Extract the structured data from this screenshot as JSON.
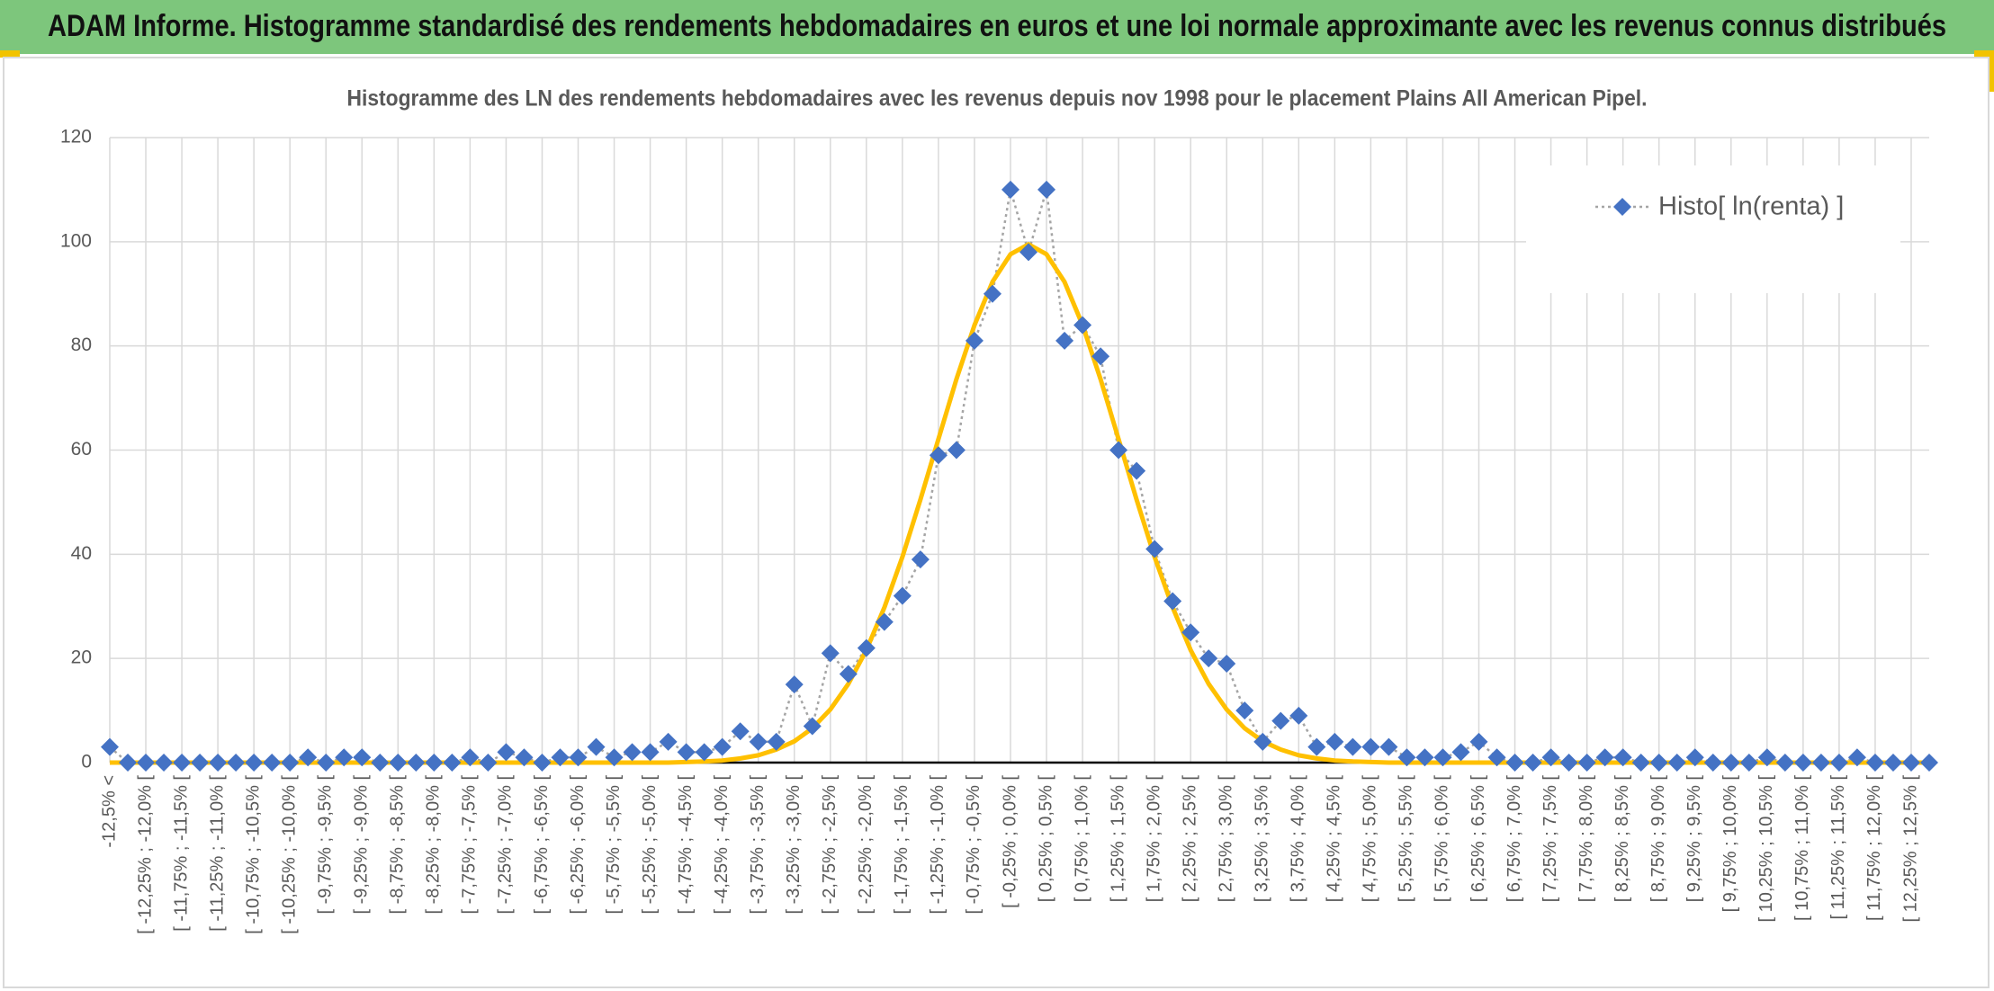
{
  "header": {
    "title": "ADAM Informe. Histogramme standardisé des rendements hebdomadaires en euros et une loi normale approximante avec les revenus connus distribués"
  },
  "chart_data": {
    "type": "line",
    "title": "Histogramme des LN des rendements hebdomadaires avec les revenus depuis nov 1998 pour le placement Plains All American Pipel.",
    "categories": [
      "-12,5% <",
      null,
      "[ -12,25% ; -12,0% [",
      null,
      "[ -11,75% ; -11,5% [",
      null,
      "[ -11,25% ; -11,0% [",
      null,
      "[ -10,75% ; -10,5% [",
      null,
      "[ -10,25% ; -10,0% [",
      null,
      "[ -9,75% ; -9,5% [",
      null,
      "[ -9,25% ; -9,0% [",
      null,
      "[ -8,75% ; -8,5% [",
      null,
      "[ -8,25% ; -8,0% [",
      null,
      "[ -7,75% ; -7,5% [",
      null,
      "[ -7,25% ; -7,0% [",
      null,
      "[ -6,75% ; -6,5% [",
      null,
      "[ -6,25% ; -6,0% [",
      null,
      "[ -5,75% ; -5,5% [",
      null,
      "[ -5,25% ; -5,0% [",
      null,
      "[ -4,75% ; -4,5% [",
      null,
      "[ -4,25% ; -4,0% [",
      null,
      "[ -3,75% ; -3,5% [",
      null,
      "[ -3,25% ; -3,0% [",
      null,
      "[ -2,75% ; -2,5% [",
      null,
      "[ -2,25% ; -2,0% [",
      null,
      "[ -1,75% ; -1,5% [",
      null,
      "[ -1,25% ; -1,0% [",
      null,
      "[ -0,75% ; -0,5% [",
      null,
      "[ -0,25% ; 0,0% [",
      null,
      "[ 0,25% ; 0,5% [",
      null,
      "[ 0,75% ; 1,0% [",
      null,
      "[ 1,25% ; 1,5% [",
      null,
      "[ 1,75% ; 2,0% [",
      null,
      "[ 2,25% ; 2,5% [",
      null,
      "[ 2,75% ; 3,0% [",
      null,
      "[ 3,25% ; 3,5% [",
      null,
      "[ 3,75% ; 4,0% [",
      null,
      "[ 4,25% ; 4,5% [",
      null,
      "[ 4,75% ; 5,0% [",
      null,
      "[ 5,25% ; 5,5% [",
      null,
      "[ 5,75% ; 6,0% [",
      null,
      "[ 6,25% ; 6,5% [",
      null,
      "[ 6,75% ; 7,0% [",
      null,
      "[ 7,25% ; 7,5% [",
      null,
      "[ 7,75% ; 8,0% [",
      null,
      "[ 8,25% ; 8,5% [",
      null,
      "[ 8,75% ; 9,0% [",
      null,
      "[ 9,25% ; 9,5% [",
      null,
      "[ 9,75% ; 10,0% [",
      null,
      "[ 10,25% ; 10,5% [",
      null,
      "[ 10,75% ; 11,0% [",
      null,
      "[ 11,25% ; 11,5% [",
      null,
      "[ 11,75% ; 12,0% [",
      null,
      "[ 12,25% ; 12,5% [",
      null
    ],
    "series": [
      {
        "name": "Histo[ ln(renta) ]",
        "color": "#4472c4",
        "line_color": "#a5a5a5",
        "values": [
          3,
          0,
          0,
          0,
          0,
          0,
          0,
          0,
          0,
          0,
          0,
          1,
          0,
          1,
          1,
          0,
          0,
          0,
          0,
          0,
          1,
          0,
          2,
          1,
          0,
          1,
          1,
          3,
          1,
          2,
          2,
          4,
          2,
          2,
          3,
          6,
          4,
          4,
          15,
          7,
          21,
          17,
          22,
          27,
          32,
          39,
          59,
          60,
          81,
          90,
          110,
          98,
          110,
          81,
          84,
          78,
          60,
          56,
          41,
          31,
          25,
          20,
          19,
          10,
          4,
          8,
          9,
          3,
          4,
          3,
          3,
          3,
          1,
          1,
          1,
          2,
          4,
          1,
          0,
          0,
          1,
          0,
          0,
          1,
          1,
          0,
          0,
          0,
          1,
          0,
          0,
          0,
          1,
          0,
          0,
          0,
          0,
          1,
          0,
          0,
          0,
          0
        ]
      },
      {
        "color": "#ffc000",
        "values": [
          0,
          0,
          0,
          0,
          0,
          0,
          0,
          0,
          0,
          0,
          0,
          0,
          0,
          0,
          0,
          0,
          0,
          0,
          0,
          0,
          0,
          0,
          0,
          0,
          0,
          0,
          0,
          0,
          0,
          0,
          0,
          0,
          0.1,
          0.2,
          0.4,
          0.8,
          1.4,
          2.5,
          4.1,
          6.6,
          10.2,
          15.1,
          21.6,
          29.8,
          39.5,
          50.5,
          62.1,
          73.6,
          84.0,
          92.3,
          97.6,
          99.5,
          97.6,
          92.3,
          84.0,
          73.6,
          62.1,
          50.5,
          39.5,
          29.8,
          21.6,
          15.1,
          10.2,
          6.6,
          4.1,
          2.5,
          1.4,
          0.8,
          0.4,
          0.2,
          0.1,
          0,
          0,
          0,
          0,
          0,
          0,
          0,
          0,
          0,
          0,
          0,
          0,
          0,
          0,
          0,
          0,
          0,
          0,
          0,
          0,
          0,
          0,
          0,
          0,
          0,
          0,
          0,
          0,
          0,
          0,
          0
        ]
      }
    ],
    "ylim": [
      0,
      120
    ],
    "yticks": [
      0,
      20,
      40,
      60,
      80,
      100,
      120
    ],
    "grid": true,
    "legend": "upper right"
  }
}
